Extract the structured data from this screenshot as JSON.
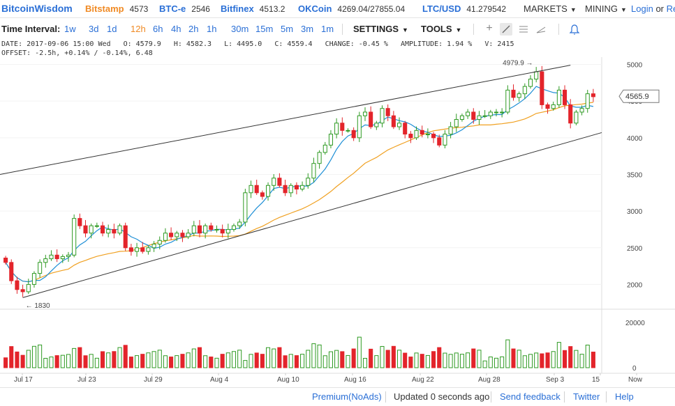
{
  "header": {
    "logo": "BitcoinWisdom",
    "tickers": [
      {
        "name": "Bitstamp",
        "value": "4573",
        "color": "#f08a24"
      },
      {
        "name": "BTC-e",
        "value": "2546",
        "color": "#2a6fd6"
      },
      {
        "name": "Bitfinex",
        "value": "4513.2",
        "color": "#2a6fd6"
      },
      {
        "name": "OKCoin",
        "value": "4269.04/27855.04",
        "color": "#2a6fd6"
      },
      {
        "name": "LTC/USD",
        "value": "41.279542",
        "color": "#2a6fd6"
      }
    ],
    "menus": [
      "MARKETS",
      "MINING"
    ],
    "login": "Login",
    "or": "or",
    "register": "Re"
  },
  "toolbar": {
    "label": "Time Interval:",
    "intervals": [
      "1w",
      "3d",
      "1d",
      "12h",
      "6h",
      "4h",
      "2h",
      "1h",
      "30m",
      "15m",
      "5m",
      "3m",
      "1m"
    ],
    "active_interval": "12h",
    "settings": "SETTINGS",
    "tools": "TOOLS",
    "tool_icons": [
      "crosshair-icon",
      "draw-line-icon",
      "fibonacci-icon",
      "ruler-icon",
      "alert-bell-icon"
    ]
  },
  "info": {
    "line1": "DATE: 2017-09-06 15:00 Wed   O: 4579.9   H: 4582.3   L: 4495.0   C: 4559.4   CHANGE: -0.45 %   AMPLITUDE: 1.94 %   V: 2415",
    "line2": "OFFSET: -2.5h, +0.14% / -0.14%, 6.48"
  },
  "chart_data": {
    "type": "candlestick",
    "price_axis": {
      "ticks": [
        "5000",
        "4500",
        "4000",
        "3500",
        "3000",
        "2500",
        "2000"
      ],
      "range": [
        1700,
        5100
      ]
    },
    "volume_axis": {
      "ticks": [
        "20000",
        "0"
      ],
      "range": [
        0,
        24000
      ]
    },
    "x_ticks": [
      "Jul 17",
      "Jul 23",
      "Jul 29",
      "Aug 4",
      "Aug 10",
      "Aug 16",
      "Aug 22",
      "Aug 28",
      "Sep 3",
      "15",
      "Now"
    ],
    "current_price": "4565.9",
    "annotations": {
      "high": "4979.9",
      "low": "1830"
    },
    "colors": {
      "up": "#2e9a22",
      "down": "#e3242b",
      "ma_fast": "#1e8fd6",
      "ma_slow": "#f0a020",
      "channel": "#333333"
    },
    "closes": [
      2300,
      2050,
      1930,
      1900,
      2000,
      2150,
      2300,
      2350,
      2400,
      2350,
      2380,
      2400,
      2900,
      2800,
      2700,
      2800,
      2800,
      2700,
      2750,
      2700,
      2800,
      2500,
      2450,
      2500,
      2450,
      2500,
      2550,
      2600,
      2700,
      2650,
      2700,
      2650,
      2700,
      2800,
      2700,
      2800,
      2750,
      2750,
      2700,
      2750,
      2800,
      2850,
      3250,
      3350,
      3250,
      3200,
      3350,
      3450,
      3350,
      3250,
      3350,
      3300,
      3350,
      3450,
      3650,
      3800,
      3900,
      4050,
      4200,
      4100,
      4100,
      4000,
      4300,
      4350,
      4150,
      4200,
      4400,
      4300,
      4150,
      4200,
      4050,
      4000,
      4100,
      4050,
      4050,
      4000,
      3900,
      4050,
      4150,
      4250,
      4300,
      4350,
      4250,
      4300,
      4300,
      4350,
      4350,
      4350,
      4650,
      4550,
      4600,
      4700,
      4800,
      4900,
      4450,
      4400,
      4450,
      4650,
      4450,
      4200,
      4350,
      4400,
      4600,
      4560
    ]
  },
  "footer": {
    "premium": "Premium(NoAds)",
    "updated": "Updated 0 seconds ago",
    "feedback": "Send feedback",
    "twitter": "Twitter",
    "help": "Help"
  }
}
